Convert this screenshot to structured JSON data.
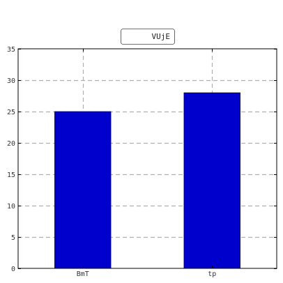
{
  "chart_data": {
    "type": "bar",
    "categories": [
      "BmT",
      "tp"
    ],
    "series": [
      {
        "name": "VUjE",
        "values": [
          25,
          28
        ],
        "color": "#0000cc"
      }
    ],
    "ylim": [
      0,
      35
    ],
    "yticks": [
      0,
      5,
      10,
      15,
      20,
      25,
      30,
      35
    ],
    "grid": true,
    "legend_position": "top-center",
    "title": "",
    "xlabel": "",
    "ylabel": ""
  }
}
